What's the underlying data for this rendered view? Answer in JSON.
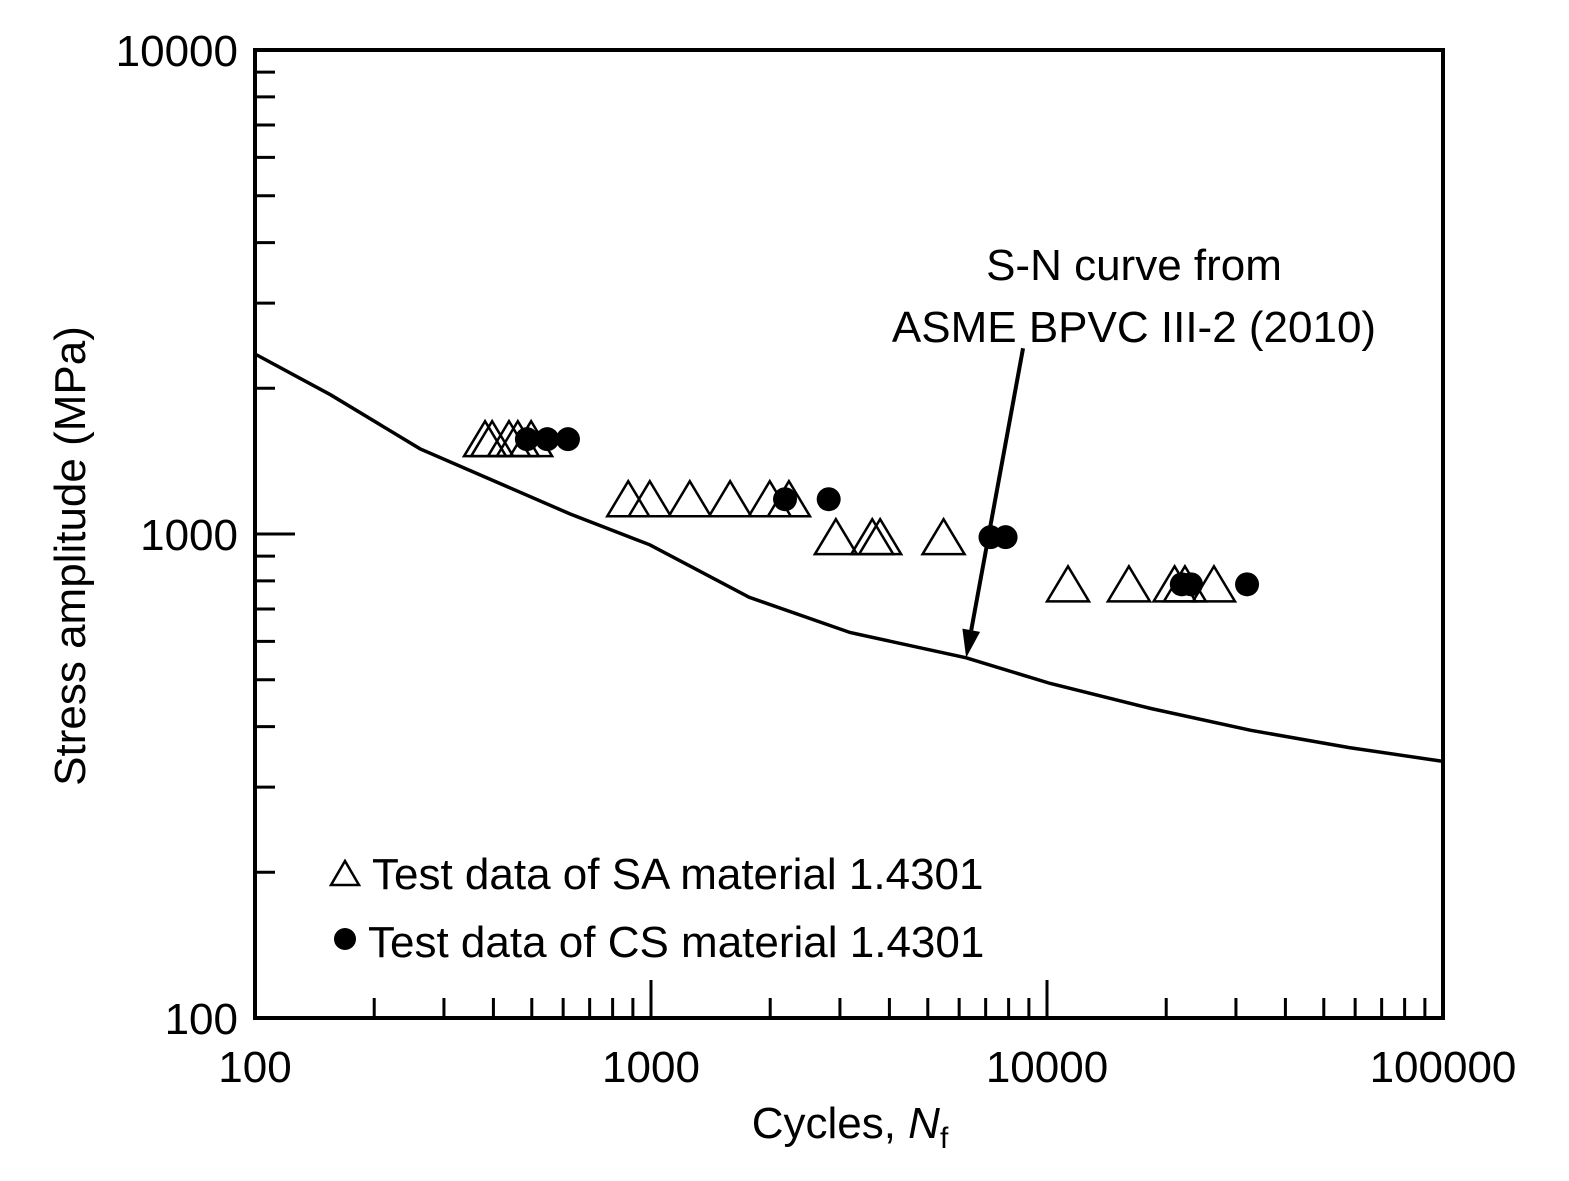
{
  "chart_data": {
    "type": "scatter",
    "title": "",
    "xlabel": "Cycles, ",
    "xlabel_italic": "N",
    "xlabel_sub": "f",
    "ylabel": "Stress amplitude (MPa)",
    "xscale": "log",
    "yscale": "log",
    "xlim": [
      100,
      100000
    ],
    "ylim": [
      100,
      10000
    ],
    "xticks": [
      100,
      1000,
      10000,
      100000
    ],
    "xtick_labels": [
      "100",
      "1000",
      "10000",
      "100000"
    ],
    "yticks": [
      100,
      1000,
      10000
    ],
    "ytick_labels": [
      "100",
      "1000",
      "10000"
    ],
    "grid": false,
    "legend_position": "bottom-left",
    "series": [
      {
        "name": "Test data of SA material 1.4301",
        "marker": "open-triangle",
        "color": "#000000",
        "points": [
          [
            381,
            1570
          ],
          [
            397,
            1570
          ],
          [
            438,
            1570
          ],
          [
            461,
            1570
          ],
          [
            498,
            1570
          ],
          [
            876,
            1180
          ],
          [
            993,
            1180
          ],
          [
            1253,
            1180
          ],
          [
            1584,
            1180
          ],
          [
            1995,
            1180
          ],
          [
            2230,
            1180
          ],
          [
            2930,
            985
          ],
          [
            3620,
            985
          ],
          [
            3790,
            985
          ],
          [
            5480,
            985
          ],
          [
            11300,
            787
          ],
          [
            16100,
            787
          ],
          [
            21000,
            787
          ],
          [
            22300,
            787
          ],
          [
            26400,
            787
          ]
        ]
      },
      {
        "name": "Test data of CS material 1.4301",
        "marker": "filled-circle",
        "color": "#000000",
        "points": [
          [
            486,
            1570
          ],
          [
            547,
            1570
          ],
          [
            617,
            1570
          ],
          [
            2180,
            1180
          ],
          [
            2810,
            1180
          ],
          [
            7200,
            985
          ],
          [
            7860,
            985
          ],
          [
            21900,
            787
          ],
          [
            23100,
            787
          ],
          [
            32000,
            787
          ]
        ]
      },
      {
        "name": "S-N curve from ASME BPVC III-2 (2010)",
        "marker": "line",
        "color": "#000000",
        "points": [
          [
            100,
            2355
          ],
          [
            155,
            1940
          ],
          [
            261,
            1500
          ],
          [
            625,
            1100
          ],
          [
            993,
            950
          ],
          [
            1770,
            740
          ],
          [
            3180,
            626
          ],
          [
            6250,
            555
          ],
          [
            10200,
            491
          ],
          [
            18300,
            436
          ],
          [
            32700,
            393
          ],
          [
            58000,
            362
          ],
          [
            100000,
            339
          ]
        ]
      }
    ],
    "annotations": [
      {
        "lines": [
          "S-N curve from",
          "ASME BPVC III-2 (2010)"
        ],
        "arrow_from": [
          8700,
          2420
        ],
        "arrow_to": [
          6250,
          555
        ]
      }
    ]
  }
}
